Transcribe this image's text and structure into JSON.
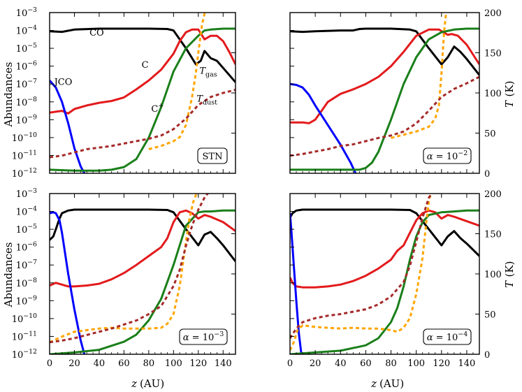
{
  "labels": {
    "ylabel_left": "Abundances",
    "ylabel_right_T": "T",
    "ylabel_right_unit": "(K)",
    "xlabel_z": "z",
    "xlabel_unit": "(AU)"
  },
  "chart_data": [
    {
      "type": "line",
      "id": "top-left",
      "box_label": "STN",
      "annotations": [
        "CO",
        "C",
        "JCO",
        "C+",
        "Tgas",
        "Tdust"
      ],
      "xlim": [
        0,
        150
      ],
      "ylim_log10": [
        -12,
        -3
      ],
      "ylim_T": [
        0,
        200
      ],
      "x_ticks": [],
      "y_ticks_left": [
        "10^-3",
        "10^-4",
        "10^-5",
        "10^-6",
        "10^-7",
        "10^-8",
        "10^-9",
        "10^-10",
        "10^-11",
        "10^-12"
      ],
      "y_ticks_right": [],
      "series": [
        {
          "name": "CO",
          "color": "#000000",
          "axis": "left",
          "x": [
            0,
            10,
            20,
            40,
            60,
            80,
            95,
            100,
            110,
            118,
            122,
            125,
            130,
            135,
            140,
            150
          ],
          "y": [
            -4.05,
            -4.08,
            -3.95,
            -3.9,
            -3.9,
            -3.9,
            -3.92,
            -4.0,
            -5.0,
            -5.9,
            -5.7,
            -5.15,
            -5.55,
            -5.7,
            -6.1,
            -6.9
          ]
        },
        {
          "name": "C",
          "color": "#e31a1c",
          "axis": "left",
          "x": [
            0,
            10,
            15,
            20,
            30,
            40,
            50,
            60,
            70,
            80,
            90,
            100,
            105,
            110,
            115,
            120,
            125,
            130,
            135,
            140,
            145,
            150
          ],
          "y": [
            -8.6,
            -8.5,
            -8.65,
            -8.4,
            -8.2,
            -8.05,
            -7.95,
            -7.75,
            -7.3,
            -6.8,
            -6.2,
            -5.3,
            -4.6,
            -4.1,
            -3.95,
            -3.95,
            -4.5,
            -4.3,
            -4.3,
            -4.6,
            -5.2,
            -5.9
          ]
        },
        {
          "name": "JCO",
          "color": "#0000ff",
          "axis": "left",
          "x": [
            0,
            5,
            10,
            15,
            20,
            25,
            28
          ],
          "y": [
            -6.8,
            -7.2,
            -8.0,
            -9.2,
            -10.6,
            -11.6,
            -12.0
          ]
        },
        {
          "name": "C+",
          "color": "#1a7f1a",
          "axis": "left",
          "x": [
            0,
            20,
            40,
            50,
            60,
            70,
            80,
            90,
            100,
            110,
            120,
            125,
            130,
            140,
            150
          ],
          "y": [
            -11.8,
            -11.85,
            -11.85,
            -11.8,
            -11.65,
            -11.2,
            -10.0,
            -8.3,
            -6.3,
            -5.0,
            -4.3,
            -4.0,
            -3.95,
            -3.9,
            -3.9
          ]
        },
        {
          "name": "Tgas",
          "color": "#ffa500",
          "axis": "right",
          "dashed": true,
          "x": [
            80,
            90,
            100,
            105,
            110,
            115,
            118,
            120,
            123,
            126
          ],
          "y": [
            30,
            34,
            40,
            45,
            60,
            95,
            125,
            150,
            185,
            205
          ]
        },
        {
          "name": "Tdust",
          "color": "#a52a2a",
          "axis": "right",
          "dashed": true,
          "x": [
            0,
            10,
            20,
            30,
            40,
            50,
            60,
            70,
            80,
            90,
            100,
            110,
            120,
            130,
            140,
            150
          ],
          "y": [
            20,
            22,
            26,
            30,
            32,
            34,
            37,
            40,
            43,
            47,
            55,
            68,
            85,
            95,
            100,
            104
          ]
        }
      ]
    },
    {
      "type": "line",
      "id": "top-right",
      "box_label": "α = 10^-2",
      "annotations": [],
      "xlim": [
        0,
        150
      ],
      "ylim_log10": [
        -12,
        -3
      ],
      "ylim_T": [
        0,
        200
      ],
      "x_ticks": [],
      "y_ticks_left": [],
      "y_ticks_right": [
        "200",
        "150",
        "100",
        "50",
        "0"
      ],
      "series": [
        {
          "name": "CO",
          "color": "#000000",
          "axis": "left",
          "x": [
            0,
            10,
            20,
            40,
            50,
            55,
            60,
            80,
            95,
            100,
            110,
            120,
            125,
            130,
            135,
            140,
            150
          ],
          "y": [
            -4.05,
            -4.08,
            -4.05,
            -4.0,
            -4.0,
            -3.92,
            -3.9,
            -3.9,
            -3.95,
            -4.05,
            -5.0,
            -5.9,
            -5.5,
            -4.9,
            -5.2,
            -5.6,
            -6.5
          ]
        },
        {
          "name": "C",
          "color": "#e31a1c",
          "axis": "left",
          "x": [
            0,
            10,
            15,
            20,
            25,
            30,
            40,
            50,
            60,
            70,
            80,
            90,
            100,
            110,
            118,
            125,
            128,
            133,
            140,
            150
          ],
          "y": [
            -9.15,
            -9.15,
            -9.2,
            -9.0,
            -8.5,
            -8.0,
            -7.55,
            -7.3,
            -7.0,
            -6.6,
            -6.0,
            -5.2,
            -4.3,
            -3.95,
            -3.95,
            -4.25,
            -4.2,
            -4.3,
            -4.8,
            -5.9
          ]
        },
        {
          "name": "JCO",
          "color": "#0000ff",
          "axis": "left",
          "x": [
            0,
            5,
            10,
            15,
            20,
            30,
            40,
            48,
            52
          ],
          "y": [
            -7.0,
            -7.05,
            -7.2,
            -7.6,
            -8.2,
            -9.3,
            -10.4,
            -11.4,
            -12.0
          ]
        },
        {
          "name": "C+",
          "color": "#1a7f1a",
          "axis": "left",
          "x": [
            0,
            20,
            40,
            55,
            60,
            65,
            70,
            80,
            90,
            100,
            110,
            120,
            130,
            140,
            150
          ],
          "y": [
            -11.8,
            -11.8,
            -11.8,
            -11.8,
            -11.7,
            -11.4,
            -10.8,
            -9.0,
            -7.0,
            -5.5,
            -4.5,
            -4.1,
            -3.95,
            -3.9,
            -3.9
          ]
        },
        {
          "name": "Tgas",
          "color": "#ffa500",
          "axis": "right",
          "dashed": true,
          "x": [
            80,
            100,
            110,
            115,
            118,
            120,
            122,
            124
          ],
          "y": [
            44,
            52,
            58,
            68,
            85,
            125,
            175,
            205
          ]
        },
        {
          "name": "Tdust",
          "color": "#a52a2a",
          "axis": "right",
          "dashed": true,
          "x": [
            0,
            10,
            20,
            30,
            40,
            50,
            60,
            70,
            80,
            90,
            100,
            110,
            120,
            130,
            140,
            150
          ],
          "y": [
            22,
            24,
            27,
            30,
            34,
            36,
            40,
            44,
            47,
            52,
            62,
            78,
            95,
            105,
            112,
            120
          ]
        }
      ]
    },
    {
      "type": "line",
      "id": "bottom-left",
      "box_label": "α = 10^-3",
      "annotations": [],
      "xlim": [
        0,
        150
      ],
      "ylim_log10": [
        -12,
        -3
      ],
      "ylim_T": [
        0,
        200
      ],
      "x_ticks": [
        "0",
        "20",
        "40",
        "60",
        "80",
        "100",
        "120",
        "140"
      ],
      "y_ticks_left": [
        "10^-3",
        "10^-4",
        "10^-5",
        "10^-6",
        "10^-7",
        "10^-8",
        "10^-9",
        "10^-10",
        "10^-11",
        "10^-12"
      ],
      "y_ticks_right": [],
      "series": [
        {
          "name": "CO",
          "color": "#000000",
          "axis": "left",
          "x": [
            0,
            3,
            5,
            8,
            10,
            15,
            20,
            40,
            60,
            80,
            95,
            100,
            110,
            120,
            125,
            130,
            135,
            140,
            150
          ],
          "y": [
            -5.6,
            -5.4,
            -5.0,
            -4.4,
            -4.1,
            -3.95,
            -3.9,
            -3.9,
            -3.9,
            -3.9,
            -3.92,
            -4.05,
            -5.0,
            -5.9,
            -5.3,
            -5.15,
            -5.5,
            -5.9,
            -6.8
          ]
        },
        {
          "name": "C",
          "color": "#e31a1c",
          "axis": "left",
          "x": [
            0,
            5,
            10,
            15,
            20,
            30,
            40,
            50,
            60,
            70,
            80,
            90,
            95,
            100,
            105,
            110,
            115,
            120,
            125,
            130,
            140,
            150
          ],
          "y": [
            -8.15,
            -8.0,
            -8.1,
            -8.2,
            -8.2,
            -8.15,
            -8.05,
            -7.8,
            -7.45,
            -7.0,
            -6.5,
            -6.0,
            -5.5,
            -4.6,
            -4.05,
            -3.95,
            -4.1,
            -4.4,
            -4.2,
            -4.3,
            -4.6,
            -5.1
          ]
        },
        {
          "name": "JCO",
          "color": "#0000ff",
          "axis": "left",
          "x": [
            0,
            3,
            5,
            8,
            10,
            15,
            20,
            25,
            28
          ],
          "y": [
            -4.1,
            -4.05,
            -4.1,
            -4.5,
            -5.2,
            -7.5,
            -9.5,
            -11.2,
            -12.0
          ]
        },
        {
          "name": "C+",
          "color": "#1a7f1a",
          "axis": "left",
          "x": [
            0,
            20,
            40,
            60,
            70,
            80,
            90,
            100,
            105,
            110,
            120,
            125,
            130,
            140,
            150
          ],
          "y": [
            -12.0,
            -11.9,
            -11.75,
            -11.3,
            -10.9,
            -10.1,
            -8.9,
            -7.0,
            -5.9,
            -4.8,
            -4.05,
            -4.0,
            -4.0,
            -3.95,
            -3.95
          ]
        },
        {
          "name": "Tgas",
          "color": "#ffa500",
          "axis": "right",
          "dashed": true,
          "x": [
            0,
            10,
            20,
            30,
            40,
            50,
            60,
            70,
            80,
            90,
            95,
            100,
            105,
            110,
            113,
            116,
            118,
            120
          ],
          "y": [
            15,
            22,
            28,
            30,
            32,
            33,
            32,
            32,
            32,
            33,
            38,
            50,
            85,
            140,
            170,
            190,
            198,
            205
          ]
        },
        {
          "name": "Tdust",
          "color": "#a52a2a",
          "axis": "right",
          "dashed": true,
          "x": [
            0,
            10,
            20,
            30,
            40,
            50,
            60,
            70,
            80,
            90,
            100,
            105,
            110,
            115,
            120,
            125,
            130
          ],
          "y": [
            15,
            17,
            20,
            24,
            28,
            32,
            37,
            42,
            50,
            60,
            85,
            105,
            135,
            160,
            180,
            195,
            205
          ]
        }
      ]
    },
    {
      "type": "line",
      "id": "bottom-right",
      "box_label": "α = 10^-4",
      "annotations": [],
      "xlim": [
        0,
        150
      ],
      "ylim_log10": [
        -12,
        -3
      ],
      "ylim_T": [
        0,
        200
      ],
      "x_ticks": [
        "0",
        "20",
        "40",
        "60",
        "80",
        "100",
        "120",
        "140"
      ],
      "y_ticks_left": [],
      "y_ticks_right": [
        "200",
        "150",
        "100",
        "50",
        "0"
      ],
      "series": [
        {
          "name": "CO",
          "color": "#000000",
          "axis": "left",
          "x": [
            0,
            2,
            5,
            10,
            20,
            40,
            60,
            80,
            95,
            100,
            110,
            120,
            125,
            130,
            135,
            140,
            150
          ],
          "y": [
            -4.35,
            -4.1,
            -3.95,
            -3.9,
            -3.9,
            -3.9,
            -3.9,
            -3.9,
            -3.92,
            -4.1,
            -5.0,
            -5.9,
            -5.4,
            -5.1,
            -5.5,
            -5.8,
            -6.5
          ]
        },
        {
          "name": "C",
          "color": "#e31a1c",
          "axis": "left",
          "x": [
            0,
            2,
            5,
            10,
            20,
            30,
            40,
            50,
            60,
            70,
            80,
            85,
            90,
            95,
            100,
            105,
            110,
            115,
            120,
            125,
            130,
            140,
            150
          ],
          "y": [
            -7.7,
            -8.0,
            -8.2,
            -8.25,
            -8.25,
            -8.2,
            -8.1,
            -7.9,
            -7.6,
            -7.2,
            -6.7,
            -6.2,
            -5.9,
            -5.2,
            -4.5,
            -4.1,
            -3.95,
            -4.05,
            -4.4,
            -4.2,
            -4.3,
            -4.55,
            -4.8
          ]
        },
        {
          "name": "JCO",
          "color": "#0000ff",
          "axis": "left",
          "x": [
            0,
            1,
            3,
            5,
            7,
            9
          ],
          "y": [
            -4.1,
            -5.0,
            -7.0,
            -9.0,
            -10.8,
            -12.0
          ]
        },
        {
          "name": "C+",
          "color": "#1a7f1a",
          "axis": "left",
          "x": [
            0,
            20,
            40,
            60,
            70,
            80,
            85,
            90,
            95,
            100,
            105,
            110,
            120,
            130,
            140,
            150
          ],
          "y": [
            -12.0,
            -11.9,
            -11.8,
            -11.5,
            -11.1,
            -10.2,
            -9.4,
            -8.2,
            -6.7,
            -5.4,
            -4.6,
            -4.2,
            -4.05,
            -4.0,
            -3.95,
            -3.95
          ]
        },
        {
          "name": "Tgas",
          "color": "#ffa500",
          "axis": "right",
          "dashed": true,
          "x": [
            0,
            3,
            6,
            10,
            20,
            30,
            40,
            50,
            60,
            70,
            80,
            85,
            90,
            95,
            100,
            105,
            108,
            110,
            112
          ],
          "y": [
            5,
            15,
            30,
            36,
            34,
            33,
            32,
            33,
            32,
            32,
            30,
            28,
            33,
            45,
            75,
            120,
            165,
            190,
            205
          ]
        },
        {
          "name": "Tdust",
          "color": "#a52a2a",
          "axis": "right",
          "dashed": true,
          "x": [
            0,
            5,
            10,
            20,
            30,
            40,
            50,
            60,
            70,
            80,
            90,
            95,
            100,
            105,
            110,
            115
          ],
          "y": [
            20,
            32,
            40,
            45,
            48,
            50,
            53,
            56,
            62,
            72,
            90,
            110,
            140,
            170,
            195,
            205
          ]
        }
      ]
    }
  ]
}
